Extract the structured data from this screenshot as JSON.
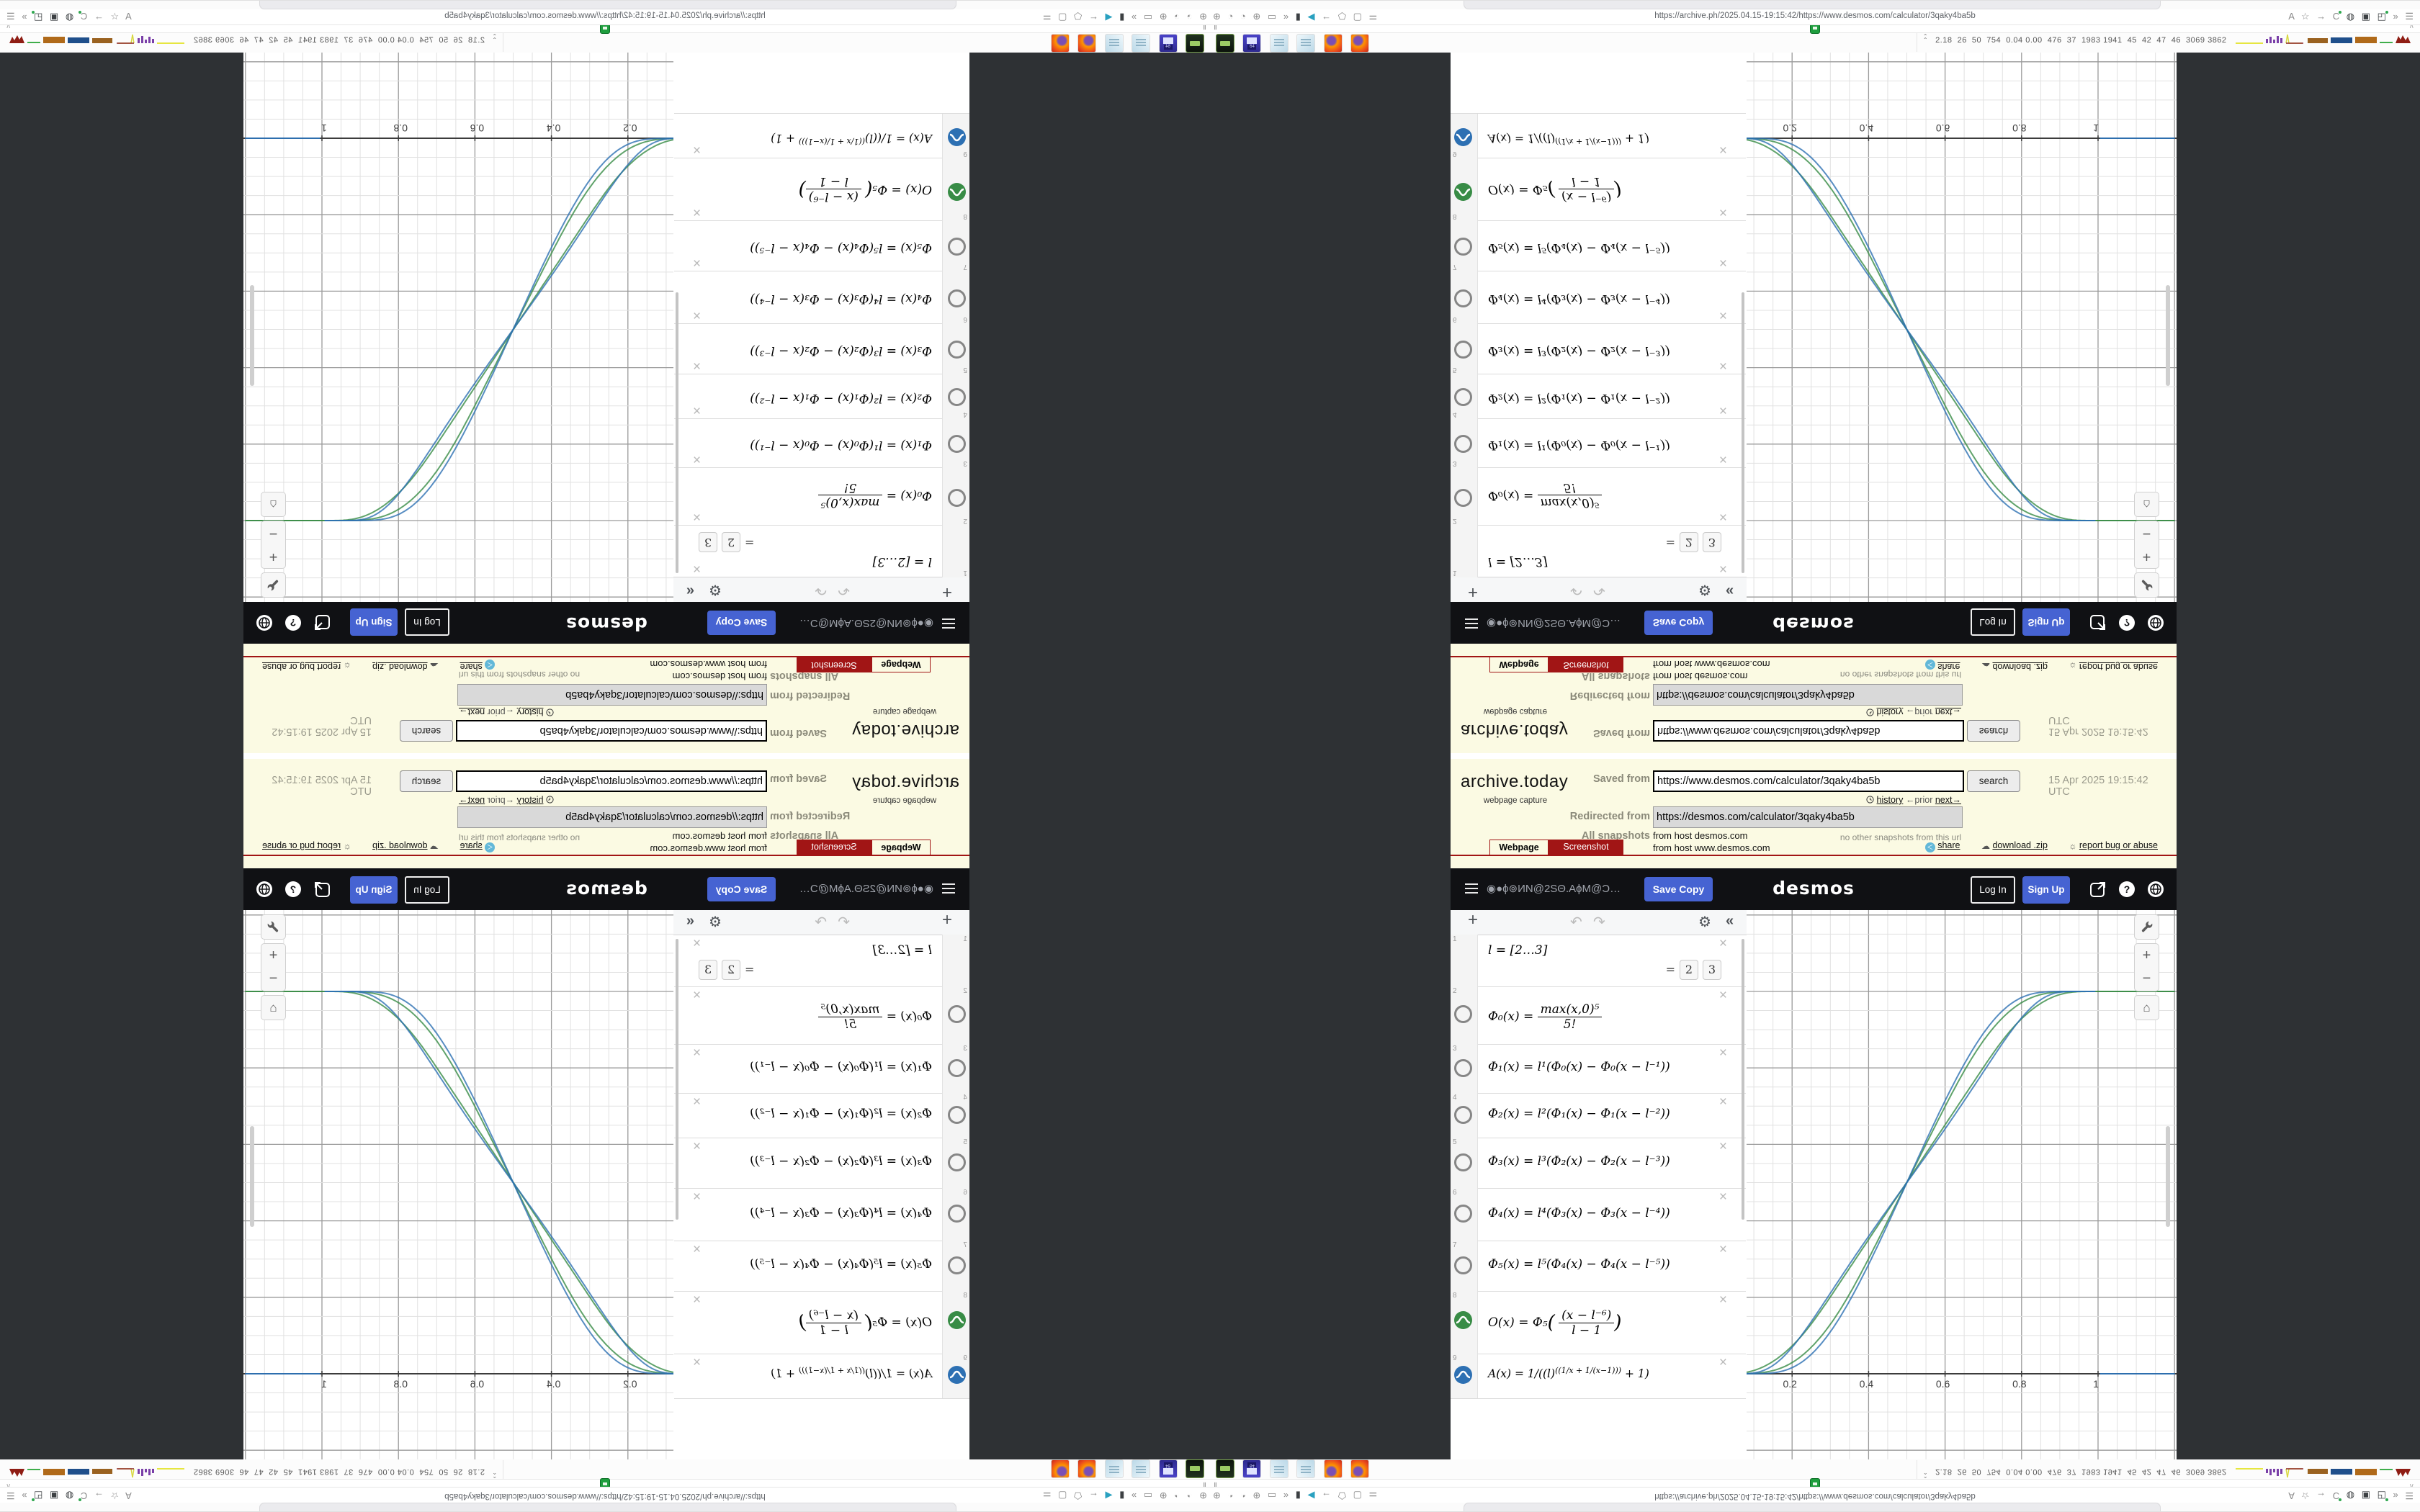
{
  "archive": {
    "logo": "archive.today",
    "tagline": "webpage capture",
    "saved_label": "Saved from",
    "saved_url": "https://www.desmos.com/calculator/3qaky4ba5b",
    "search_label": "search",
    "date": "15 Apr 2025 19:15:42 UTC",
    "history_link": "history",
    "prior_link": "←prior",
    "next_link": "next→",
    "redirected_label": "Redirected from",
    "redirected_url": "https://desmos.com/calculator/3qaky4ba5b",
    "no_snapshots": "no other snapshots from this url",
    "all_snapshots_label": "All snapshots",
    "host1": "from host desmos.com",
    "host2": "from host www.desmos.com",
    "tab_webpage": "Webpage",
    "tab_screenshot": "Screenshot",
    "share_link": "share",
    "download_link": "download .zip",
    "report_link": "report bug or abuse"
  },
  "desmos": {
    "title": "◉●ϕ⊚ИΝ@2SΘ.ΑϕΜ@Ɔ…",
    "save_copy": "Save Copy",
    "logo": "desmos",
    "log_in": "Log In",
    "sign_up": "Sign Up",
    "help_glyph": "?"
  },
  "expressions": {
    "toolbar": {
      "add": "+",
      "undo": "↶",
      "redo": "↷",
      "gear": "⚙",
      "collapse": "«"
    },
    "rows": [
      {
        "index": "1",
        "latex": "l = [2…3]",
        "chip_eq": "=",
        "chips": [
          "2",
          "3"
        ]
      },
      {
        "index": "2",
        "lhs": "Φ₀(x) =",
        "num": "max(x,0)⁵",
        "den": "5!"
      },
      {
        "index": "3",
        "latex": "Φ₁(x) = l¹(Φ₀(x) − Φ₀(x − l⁻¹))"
      },
      {
        "index": "4",
        "latex": "Φ₂(x) = l²(Φ₁(x) − Φ₁(x − l⁻²))"
      },
      {
        "index": "5",
        "latex": "Φ₃(x) = l³(Φ₂(x) − Φ₂(x − l⁻³))"
      },
      {
        "index": "6",
        "latex": "Φ₄(x) = l⁴(Φ₃(x) − Φ₃(x − l⁻⁴))"
      },
      {
        "index": "7",
        "latex": "Φ₅(x) = l⁵(Φ₄(x) − Φ₄(x − l⁻⁵))"
      },
      {
        "index": "8",
        "lhs": "O(x) = Φ₅",
        "num": "(x − l⁻⁶)",
        "den": "l − 1"
      },
      {
        "index": "9",
        "base": "A(x) = 1/((l)",
        "sup": "((1/x + 1/(x−1)))",
        "tail": " + 1)"
      }
    ]
  },
  "chart_data": {
    "type": "line",
    "title": "",
    "xlabel": "",
    "ylabel": "",
    "x_visible": [
      0.081,
      1.205
    ],
    "y_visible": [
      -0.225,
      1.213
    ],
    "grid": {
      "minor_step": 0.05,
      "major_step": 0.2,
      "grid_on": true
    },
    "x_ticks": [
      {
        "v": 0.2,
        "label": "0.2"
      },
      {
        "v": 0.4,
        "label": "0.4"
      },
      {
        "v": 0.6,
        "label": "0.6"
      },
      {
        "v": 0.8,
        "label": "0.8"
      },
      {
        "v": 1,
        "label": "1"
      }
    ],
    "series": [
      {
        "name": "O(x), l=2",
        "fn": "O",
        "l": 2,
        "color": "#388c46",
        "formula": "O(x)=Φ₅((x−l⁻⁶)/(l−1))",
        "x": [
          0,
          0.1,
          0.2,
          0.3,
          0.4,
          0.5,
          0.6,
          0.7,
          0.8,
          0.9,
          1
        ],
        "y": [
          0,
          0.008,
          0.062,
          0.18,
          0.345,
          0.52,
          0.68,
          0.82,
          0.925,
          0.985,
          1
        ]
      },
      {
        "name": "O(x), l=3",
        "fn": "O",
        "l": 3,
        "color": "#388c46",
        "formula": "O(x)=Φ₅((x−l⁻⁶)/(l−1))",
        "x": [
          0,
          0.1,
          0.2,
          0.3,
          0.4,
          0.5,
          0.6,
          0.7,
          0.8,
          0.9,
          1
        ],
        "y": [
          0,
          0.002,
          0.034,
          0.135,
          0.31,
          0.52,
          0.71,
          0.865,
          0.955,
          0.995,
          1
        ]
      },
      {
        "name": "A(x), l=2",
        "fn": "A",
        "l": 2,
        "color": "#2d70b3",
        "formula": "A(x)=1/(l^(1/x+1/(x−1))+1)",
        "x": [
          0,
          0.1,
          0.2,
          0.3,
          0.4,
          0.5,
          0.6,
          0.7,
          0.8,
          0.9,
          1
        ],
        "y": [
          0,
          0.002,
          0.069,
          0.211,
          0.359,
          0.5,
          0.641,
          0.789,
          0.931,
          0.998,
          1
        ]
      },
      {
        "name": "A(x), l=3",
        "fn": "A",
        "l": 3,
        "color": "#2d70b3",
        "formula": "A(x)=1/(l^(1/x+1/(x−1))+1)",
        "x": [
          0,
          0.1,
          0.2,
          0.3,
          0.4,
          0.5,
          0.6,
          0.7,
          0.8,
          0.9,
          1
        ],
        "y": [
          0,
          0.0001,
          0.016,
          0.11,
          0.286,
          0.5,
          0.714,
          0.89,
          0.984,
          0.9999,
          1
        ]
      }
    ],
    "legend": "none"
  },
  "chrome": {
    "url": "https://archive.ph/2025.04.15-19:15:42/https://www.desmos.com/calculator/3qaky4ba5b",
    "grip": "∥",
    "chevron": "∧",
    "left_icons": "⊕ ◔ ◔ ⊕ ▭ »",
    "left_icons2": "▮",
    "left_icons3": "◀",
    "left_icons4": "← ⬠ ▢ ⚌",
    "right_icons1": "A ☆ → C",
    "right_icons2": "◍ ▣ ◰",
    "right_icons3": "» ☰"
  },
  "taskbar": {
    "stats": "2.18  26  50  754  0.04 0.00  476  37  1983 1941  45  42  47  46  3069 3862",
    "up_glyphs": "∧∧"
  }
}
